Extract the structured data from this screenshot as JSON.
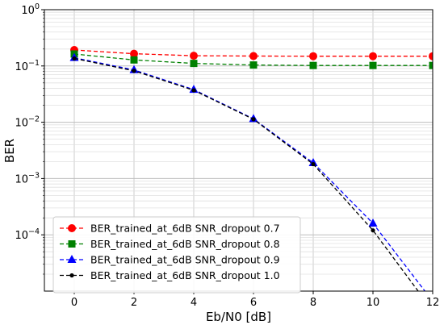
{
  "chart_data": {
    "type": "line",
    "title": "",
    "xlabel": "Eb/N0 [dB]",
    "ylabel": "BER",
    "xlim": [
      -1,
      12
    ],
    "ylim": [
      1e-05,
      1
    ],
    "yscale": "log",
    "grid": "on (major and minor)",
    "legend_position": "lower-left",
    "x_ticks": [
      0,
      2,
      4,
      6,
      8,
      10,
      12
    ],
    "x_tick_labels": [
      "0",
      "2",
      "4",
      "6",
      "8",
      "10",
      "12"
    ],
    "y_ticks": [
      0.0001,
      0.001,
      0.01,
      0.1,
      1
    ],
    "y_tick_labels": [
      {
        "base": "10",
        "exp": "−4"
      },
      {
        "base": "10",
        "exp": "−3"
      },
      {
        "base": "10",
        "exp": "−2"
      },
      {
        "base": "10",
        "exp": "−1"
      },
      {
        "base": "10",
        "exp": "0"
      }
    ],
    "x": [
      0,
      2,
      4,
      6,
      8,
      10,
      12
    ],
    "series": [
      {
        "name": "BER_trained_at_6dB SNR_dropout 0.7",
        "color": "#ff0000",
        "marker": "circle",
        "values": [
          0.192,
          0.165,
          0.152,
          0.15,
          0.149,
          0.149,
          0.149
        ]
      },
      {
        "name": "BER_trained_at_6dB SNR_dropout 0.8",
        "color": "#008000",
        "marker": "square",
        "values": [
          0.163,
          0.128,
          0.111,
          0.104,
          0.102,
          0.102,
          0.102
        ]
      },
      {
        "name": "BER_trained_at_6dB SNR_dropout 0.9",
        "color": "#0000ff",
        "marker": "triangle",
        "values": [
          0.14,
          0.085,
          0.038,
          0.0115,
          0.0019,
          0.00016,
          6.6e-06
        ]
      },
      {
        "name": "BER_trained_at_6dB SNR_dropout 1.0",
        "color": "#000000",
        "marker": "dot",
        "values": [
          0.136,
          0.082,
          0.037,
          0.0113,
          0.0018,
          0.00012,
          4.5e-06
        ]
      }
    ]
  }
}
